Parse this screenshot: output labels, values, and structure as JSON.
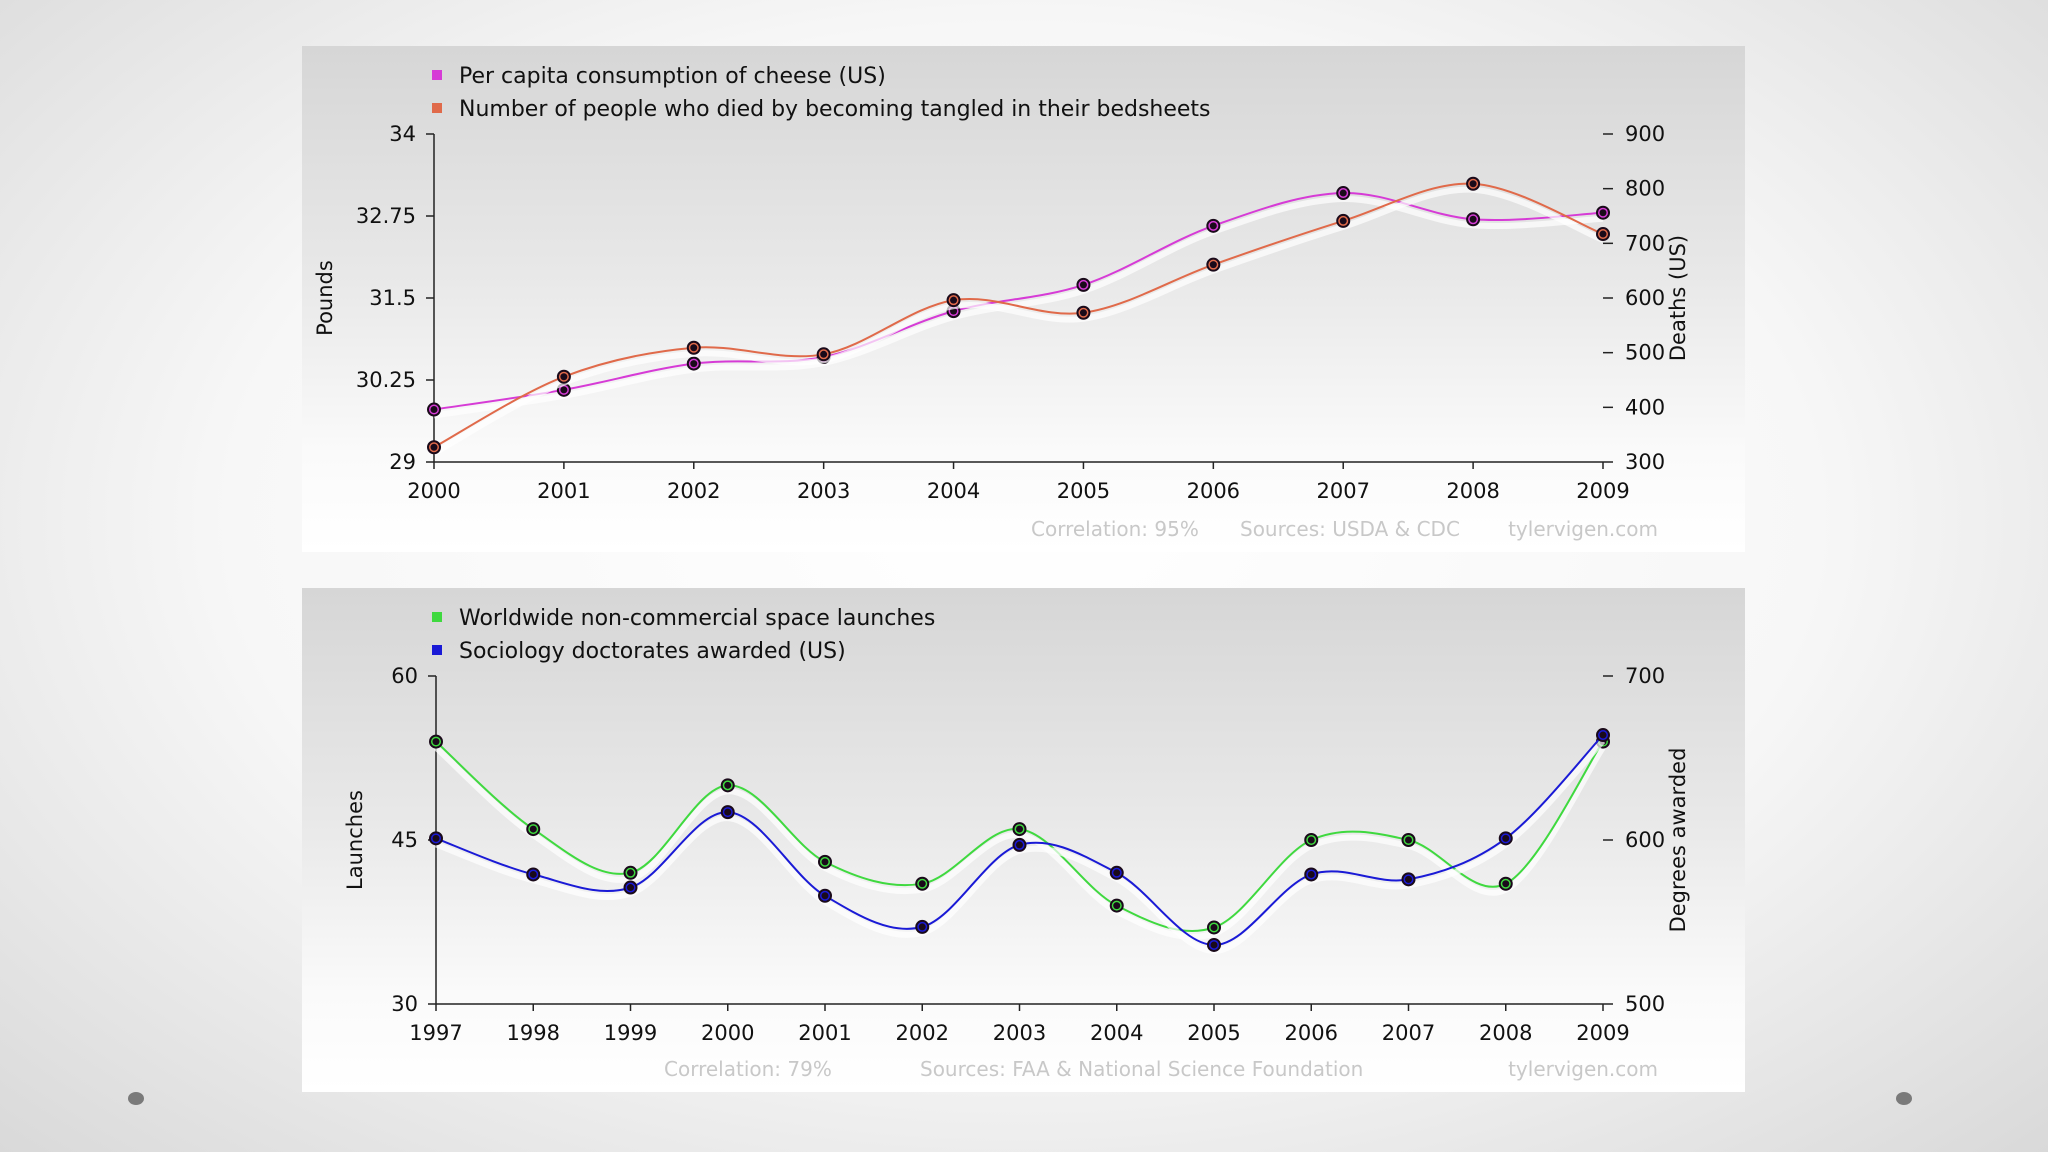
{
  "colors": {
    "cheese": "#d63bd6",
    "bedsheets": "#e06a4a",
    "launches": "#3fd93f",
    "sociology": "#1a1ad6",
    "marker_dark": "#1a0a1a",
    "axis": "#222222",
    "footer": "#c8c8c8"
  },
  "chart_data": [
    {
      "type": "line",
      "title": "",
      "xlabel": "",
      "ylabel": "Pounds",
      "y2label": "Deaths (US)",
      "categories": [
        "2000",
        "2001",
        "2002",
        "2003",
        "2004",
        "2005",
        "2006",
        "2007",
        "2008",
        "2009"
      ],
      "ylim": [
        29,
        34
      ],
      "yticks": [
        "29",
        "30.25",
        "31.5",
        "32.75",
        "34"
      ],
      "y2lim": [
        300,
        900
      ],
      "y2ticks": [
        "300",
        "400",
        "500",
        "600",
        "700",
        "800",
        "900"
      ],
      "series": [
        {
          "name": "Per capita consumption of cheese (US)",
          "axis": "left",
          "color_key": "cheese",
          "values": [
            29.8,
            30.1,
            30.5,
            30.6,
            31.3,
            31.7,
            32.6,
            33.1,
            32.7,
            32.8
          ]
        },
        {
          "name": "Number of people who died by becoming tangled in their bedsheets",
          "axis": "right",
          "color_key": "bedsheets",
          "values": [
            327,
            456,
            509,
            497,
            596,
            573,
            661,
            741,
            809,
            717
          ]
        }
      ],
      "legend_position": "top-left",
      "footer": {
        "correlation": "Correlation: 95%",
        "sources": "Sources: USDA & CDC",
        "site": "tylervigen.com"
      }
    },
    {
      "type": "line",
      "title": "",
      "xlabel": "",
      "ylabel": "Launches",
      "y2label": "Degrees awarded",
      "categories": [
        "1997",
        "1998",
        "1999",
        "2000",
        "2001",
        "2002",
        "2003",
        "2004",
        "2005",
        "2006",
        "2007",
        "2008",
        "2009"
      ],
      "ylim": [
        30,
        60
      ],
      "yticks": [
        "30",
        "45",
        "60"
      ],
      "y2lim": [
        500,
        700
      ],
      "y2ticks": [
        "500",
        "600",
        "700"
      ],
      "series": [
        {
          "name": "Worldwide non-commercial space launches",
          "axis": "left",
          "color_key": "launches",
          "values": [
            54,
            46,
            42,
            50,
            43,
            41,
            46,
            39,
            37,
            45,
            45,
            41,
            54
          ]
        },
        {
          "name": "Sociology doctorates awarded (US)",
          "axis": "right",
          "color_key": "sociology",
          "values": [
            601,
            579,
            571,
            617,
            566,
            547,
            597,
            580,
            536,
            579,
            576,
            601,
            664
          ]
        }
      ],
      "legend_position": "top-left",
      "footer": {
        "correlation": "Correlation: 79%",
        "sources": "Sources: FAA & National Science Foundation",
        "site": "tylervigen.com"
      }
    }
  ]
}
